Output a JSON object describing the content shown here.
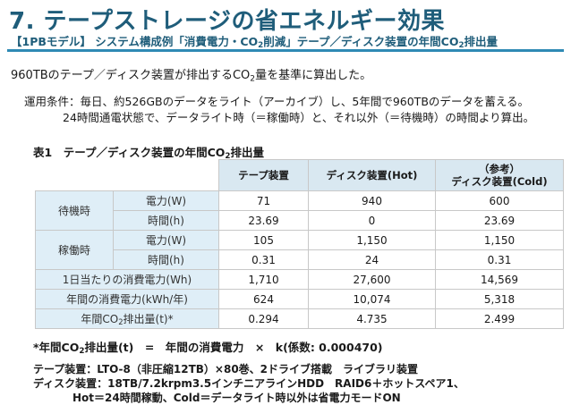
{
  "title": "7. テープストレージの省エネルギー効果",
  "subtitle": {
    "pre": "【1PBモデル】 システム構成例「消費電力・CO",
    "sub": "2",
    "post": "削減」テープ／ディスク装置の年間CO",
    "sub2": "2",
    "post2": "排出量"
  },
  "intro": {
    "pre": "960TBのテープ／ディスク装置が排出するCO",
    "sub": "2",
    "post": "量を基準に算出した。"
  },
  "conditions": {
    "line1": "運用条件：毎日、約526GBのデータをライト（アーカイブ）し、5年間で960TBのデータを蓄える。",
    "line2": "24時間通電状態で、データライト時（＝稼働時）と、それ以外（＝待機時）の時間より算出。"
  },
  "table": {
    "caption": {
      "pre": "表1　テープ／ディスク装置の年間CO",
      "sub": "2",
      "post": "排出量"
    },
    "headers": {
      "tape": "テープ装置",
      "disk_hot": "ディスク装置(Hot)",
      "ref_note": "（参考）",
      "disk_cold": "ディスク装置(Cold)"
    },
    "standby": {
      "label": "待機時",
      "power": {
        "label": "電力(W)",
        "tape": "71",
        "hot": "940",
        "cold": "600"
      },
      "time": {
        "label": "時間(h)",
        "tape": "23.69",
        "hot": "0",
        "cold": "23.69"
      }
    },
    "active": {
      "label": "稼働時",
      "power": {
        "label": "電力(W)",
        "tape": "105",
        "hot": "1,150",
        "cold": "1,150"
      },
      "time": {
        "label": "時間(h)",
        "tape": "0.31",
        "hot": "24",
        "cold": "0.31"
      }
    },
    "daily": {
      "label": "1日当たりの消費電力(Wh)",
      "tape": "1,710",
      "hot": "27,600",
      "cold": "14,569"
    },
    "annual_power": {
      "label": "年間の消費電力(kWh/年)",
      "tape": "624",
      "hot": "10,074",
      "cold": "5,318"
    },
    "annual_co2": {
      "label_pre": "年間CO",
      "label_sub": "2",
      "label_post": "排出量(t)*",
      "tape": "0.294",
      "hot": "4.735",
      "cold": "2.499"
    }
  },
  "formula": {
    "pre": "*年間CO",
    "sub": "2",
    "post": "排出量(t)　=　年間の消費電力　×　k(係数: 0.000470)"
  },
  "specs": {
    "line1": "テープ装置：LTO-8（非圧縮12TB）×80巻、2ドライブ搭載　ライブラリ装置",
    "line2": "ディスク装置：18TB/7.2krpm3.5インチニアラインHDD　RAID6＋ホットスペア1、",
    "line3": "Hot＝24時間稼動、Cold＝データライト時以外は省電力モードON"
  }
}
